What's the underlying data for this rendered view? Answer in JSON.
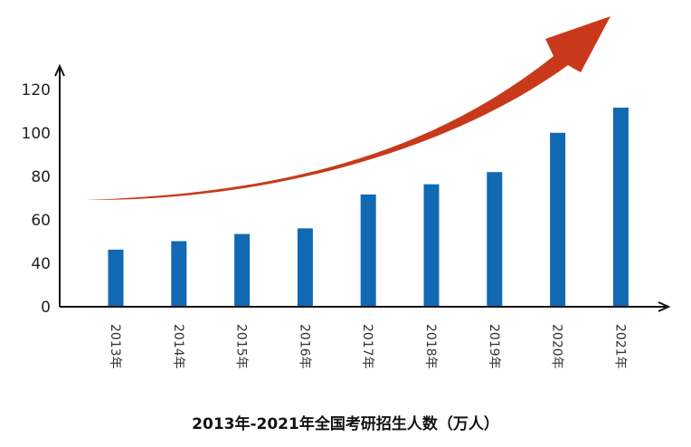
{
  "chart_data": {
    "type": "bar",
    "title": "2013年-2021年全国考研招生人数（万人）",
    "categories": [
      "2013年",
      "2014年",
      "2015年",
      "2016年",
      "2017年",
      "2018年",
      "2019年",
      "2020年",
      "2021年"
    ],
    "values": [
      46.3,
      50.2,
      53.5,
      56.1,
      71.7,
      76.4,
      82.0,
      100.1,
      111.7
    ],
    "yticks": [
      "0",
      "40",
      "60",
      "80",
      "100",
      "120"
    ],
    "ylim": [
      0,
      130
    ],
    "y_axis_break": "between 0 and 40",
    "grid": false,
    "legend": "none",
    "colors": {
      "bar": "#1169b3",
      "trend_arrow": "#c8391b"
    },
    "annotation_icon": "upward-trend-arrow"
  }
}
